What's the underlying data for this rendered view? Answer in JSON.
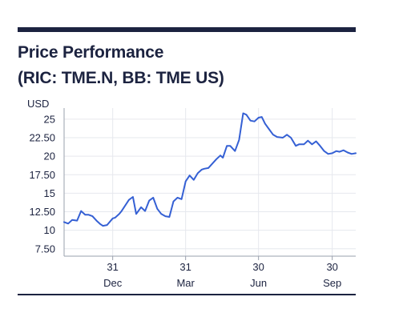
{
  "title_line1": "Price Performance",
  "title_line2": "(RIC: TME.N, BB: TME US)",
  "colors": {
    "line": "#3560d4",
    "text": "#1c2340",
    "grid": "#e6e8ee",
    "axis": "#9aa0ad"
  },
  "chart_data": {
    "type": "line",
    "title": "Price Performance (RIC: TME.N, BB: TME US)",
    "ylabel": "USD",
    "ylim": [
      6.5,
      26.5
    ],
    "yticks": [
      7.5,
      10,
      12.5,
      15,
      17.5,
      20,
      22.5,
      25
    ],
    "ytick_labels": [
      "7.50",
      "10",
      "12.50",
      "15",
      "17.50",
      "20",
      "22.50",
      "25"
    ],
    "xlim": [
      0,
      360
    ],
    "xticks": [
      {
        "x": 60,
        "label": "31",
        "sub": "Dec"
      },
      {
        "x": 150,
        "label": "31",
        "sub": "Mar"
      },
      {
        "x": 240,
        "label": "30",
        "sub": "Jun"
      },
      {
        "x": 331,
        "label": "30",
        "sub": "Sep"
      }
    ],
    "grid": true,
    "series": [
      {
        "x": [
          0,
          5,
          10,
          16,
          21,
          26,
          30,
          35,
          40,
          45,
          48,
          53,
          60,
          63,
          68,
          71,
          80,
          85,
          89,
          95,
          100,
          105,
          110,
          115,
          120,
          125,
          130,
          135,
          140,
          145,
          150,
          155,
          160,
          165,
          170,
          173,
          178,
          183,
          188,
          193,
          196,
          201,
          205,
          211,
          216,
          221,
          225,
          230,
          235,
          240,
          244,
          248,
          252,
          258,
          263,
          270,
          275,
          280,
          286,
          290,
          296,
          301,
          306,
          311,
          316,
          321,
          326,
          331,
          336,
          340,
          345,
          350,
          355,
          360
        ],
        "y": [
          11.1,
          10.9,
          11.4,
          11.3,
          12.6,
          12.1,
          12.1,
          11.9,
          11.3,
          10.8,
          10.6,
          10.7,
          11.6,
          11.7,
          12.2,
          12.6,
          14.1,
          14.5,
          12.2,
          13.1,
          12.6,
          14.0,
          14.4,
          12.9,
          12.2,
          11.9,
          11.8,
          13.9,
          14.4,
          14.2,
          16.6,
          17.4,
          16.8,
          17.7,
          18.2,
          18.3,
          18.4,
          19.0,
          19.6,
          20.1,
          19.8,
          21.4,
          21.4,
          20.7,
          22.2,
          25.8,
          25.6,
          24.8,
          24.7,
          25.2,
          25.3,
          24.4,
          23.8,
          22.9,
          22.6,
          22.5,
          22.9,
          22.5,
          21.4,
          21.6,
          21.6,
          22.1,
          21.6,
          22.0,
          21.4,
          20.7,
          20.3,
          20.4,
          20.7,
          20.6,
          20.8,
          20.5,
          20.3,
          20.4
        ]
      }
    ]
  }
}
